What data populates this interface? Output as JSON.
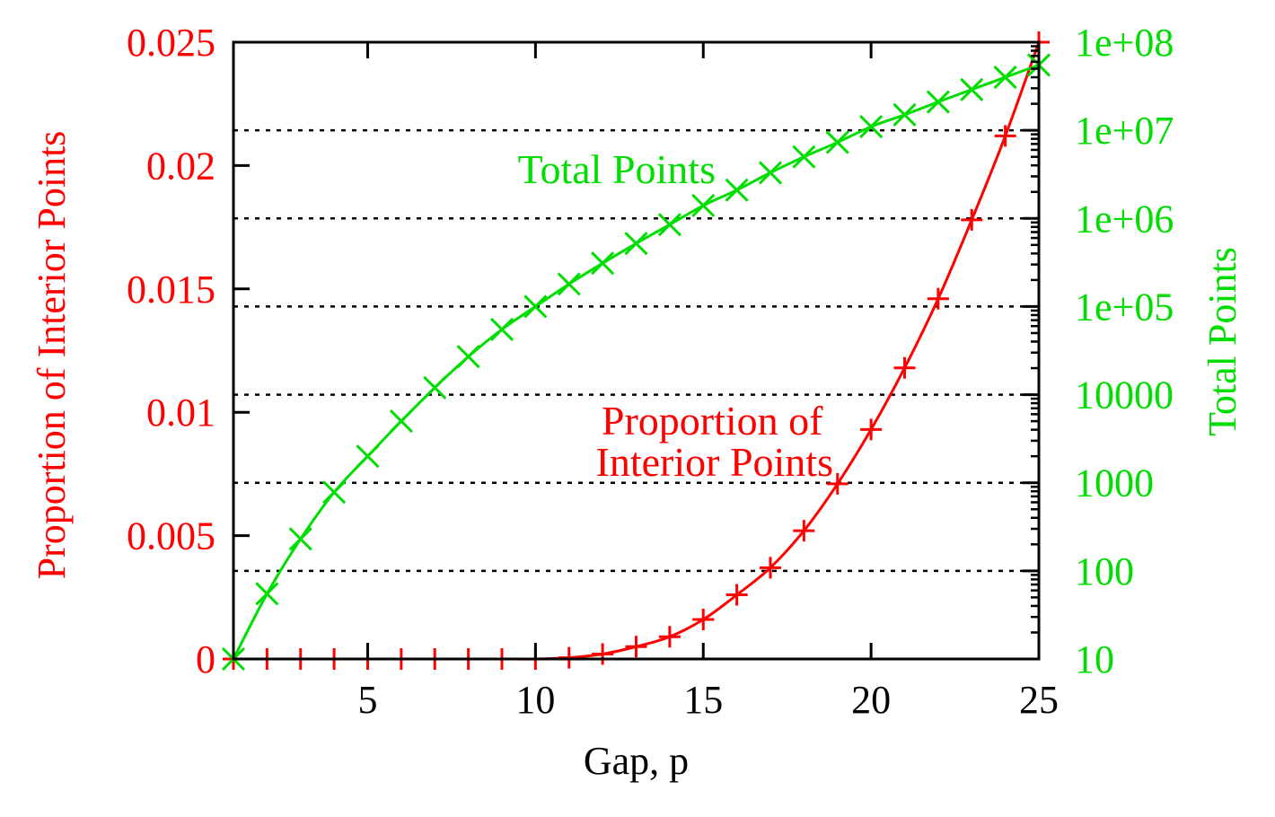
{
  "chart_data": {
    "type": "line",
    "xlabel": "Gap, p",
    "ylabel": "Proportion of Interior Points",
    "y2label": "Total Points",
    "xlim": [
      1,
      25
    ],
    "ylim": [
      0,
      0.025
    ],
    "y2lim": [
      10,
      100000000
    ],
    "y2scale": "log",
    "x_ticks": [
      5,
      10,
      15,
      20,
      25
    ],
    "x_tick_labels": [
      "5",
      "10",
      "15",
      "20",
      "25"
    ],
    "y_ticks": [
      0,
      0.005,
      0.01,
      0.015,
      0.02,
      0.025
    ],
    "y_tick_labels": [
      "0",
      "0.005",
      "0.01",
      "0.015",
      "0.02",
      "0.025"
    ],
    "y2_ticks": [
      10,
      100,
      1000,
      10000,
      100000,
      1000000,
      10000000,
      100000000
    ],
    "y2_tick_labels": [
      "10",
      "100",
      "1000",
      "10000",
      "1e+05",
      "1e+06",
      "1e+07",
      "1e+08"
    ],
    "grid": "horizontal dotted lines at right-axis decades",
    "annotations": [
      {
        "lines": [
          "Total Points"
        ],
        "series": "Total Points"
      },
      {
        "lines": [
          "Proportion of",
          "Interior Points"
        ],
        "series": "Proportion of Interior Points"
      }
    ],
    "series": [
      {
        "name": "Proportion of Interior Points",
        "axis": "left",
        "marker": "plus",
        "color": "#ff0000",
        "x": [
          1,
          2,
          3,
          4,
          5,
          6,
          7,
          8,
          9,
          10,
          11,
          12,
          13,
          14,
          15,
          16,
          17,
          18,
          19,
          20,
          21,
          22,
          23,
          24,
          25
        ],
        "values": [
          0,
          0,
          0,
          0,
          0,
          0,
          0,
          0,
          0,
          0,
          5e-05,
          0.0002,
          0.0005,
          0.0009,
          0.0016,
          0.0026,
          0.0037,
          0.0052,
          0.0071,
          0.0093,
          0.0118,
          0.0146,
          0.0178,
          0.0212,
          0.025
        ]
      },
      {
        "name": "Total Points",
        "axis": "right",
        "marker": "cross",
        "color": "#00dd00",
        "x": [
          1,
          2,
          3,
          4,
          5,
          6,
          7,
          8,
          9,
          10,
          11,
          12,
          13,
          14,
          15,
          16,
          17,
          18,
          19,
          20,
          21,
          22,
          23,
          24,
          25
        ],
        "values": [
          10,
          55,
          230,
          780,
          2000,
          5000,
          12000,
          27000,
          55000,
          100000,
          180000,
          310000,
          520000,
          850000,
          1400000,
          2100000,
          3300000,
          5000000,
          7300000,
          11000000,
          15000000,
          21000000,
          29000000,
          40000000,
          55000000
        ]
      }
    ]
  }
}
